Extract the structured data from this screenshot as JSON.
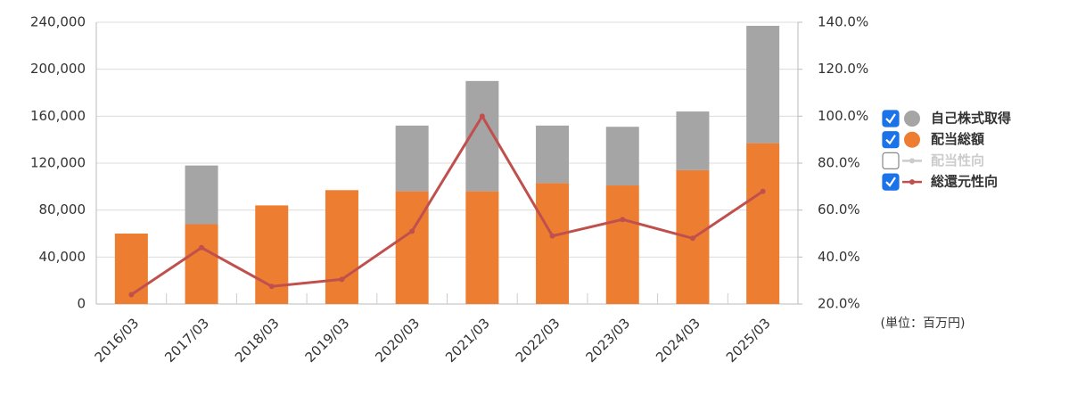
{
  "chart_data": {
    "type": "combo",
    "categories": [
      "2016/03",
      "2017/03",
      "2018/03",
      "2019/03",
      "2020/03",
      "2021/03",
      "2022/03",
      "2023/03",
      "2024/03",
      "2025/03"
    ],
    "series": [
      {
        "name": "自己株式取得",
        "type": "bar",
        "color": "#a5a5a5",
        "visible": true,
        "values": [
          0,
          50000,
          0,
          0,
          56000,
          94000,
          49000,
          50000,
          50000,
          100000
        ]
      },
      {
        "name": "配当総額",
        "type": "bar",
        "color": "#ed7d31",
        "visible": true,
        "values": [
          60000,
          68000,
          84000,
          97000,
          96000,
          96000,
          103000,
          101000,
          114000,
          137000
        ]
      },
      {
        "name": "配当性向",
        "type": "line",
        "axis": "y2",
        "color": "#cccccc",
        "visible": false,
        "values": [
          null,
          null,
          null,
          null,
          null,
          null,
          null,
          null,
          null,
          null
        ]
      },
      {
        "name": "総還元性向",
        "type": "line",
        "axis": "y2",
        "color": "#c0504d",
        "visible": true,
        "values": [
          24,
          44,
          27.5,
          30.5,
          51,
          100,
          49,
          56,
          48,
          68
        ]
      }
    ],
    "ylim": [
      0,
      240000
    ],
    "yticks": [
      0,
      {
        "value": 40000,
        "label": "40,000"
      },
      {
        "value": 80000,
        "label": "80,000"
      },
      {
        "value": 120000,
        "label": "120,000"
      },
      {
        "value": 160000,
        "label": "160,000"
      },
      {
        "value": 200000,
        "label": "200,000"
      },
      {
        "value": 240000,
        "label": "240,000"
      }
    ],
    "y2lim": [
      20,
      140
    ],
    "y2ticks": [
      {
        "value": 20,
        "label": "20.0%"
      },
      {
        "value": 40,
        "label": "40.0%"
      },
      {
        "value": 60,
        "label": "60.0%"
      },
      {
        "value": 80,
        "label": "80.0%"
      },
      {
        "value": 100,
        "label": "100.0%"
      },
      {
        "value": 120,
        "label": "120.0%"
      },
      {
        "value": 140,
        "label": "140.0%"
      }
    ],
    "grid": true,
    "legend": "right",
    "unit_note": "(単位：百万円)"
  }
}
